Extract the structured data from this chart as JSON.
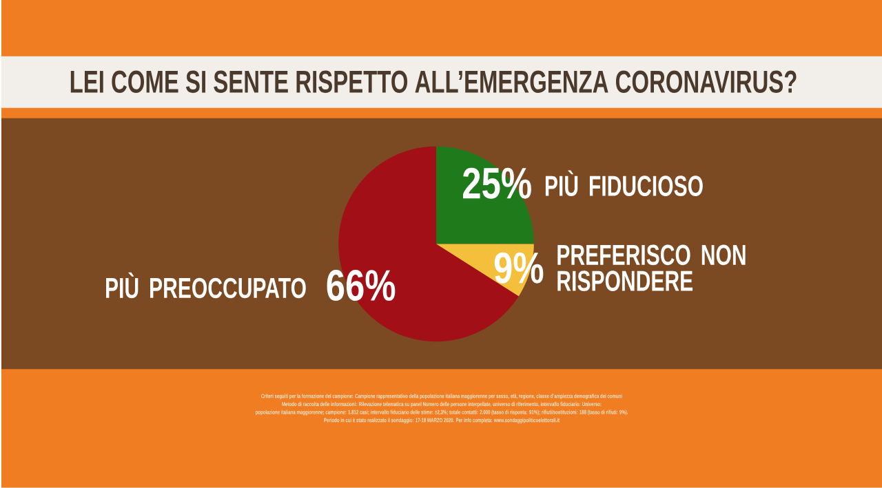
{
  "chart_data": {
    "type": "pie",
    "title": "LEI COME SI SENTE RISPETTO ALL’EMERGENZA CORONAVIRUS?",
    "categories": [
      "PIÙ FIDUCIOSO",
      "PREFERISCO NON RISPONDERE",
      "PIÙ PREOCCUPATO"
    ],
    "values": [
      25,
      9,
      66
    ],
    "value_labels": [
      "25%",
      "9%",
      "66%"
    ],
    "colors": [
      "#1f7a1c",
      "#f4c03c",
      "#a30f16"
    ],
    "annotations": [
      "Criteri seguiti per la formazione del campione: Campione rappresentativo della popolazione italiana maggiorenne per sesso, età, regione, classe d'ampiezza demografica dei comuni",
      "Metodo di raccolta delle informazioni: Rilevazione telematica su panel Numero delle persone interpellate, universo di riferimento, intervallo fiduciario: Universo:",
      "popolazione italiana maggiorenne; campione: 1.812 casi; intervallo fiduciario delle stime: ±2,3%; totale contatti: 2.000 (tasso di risposta: 91%); rifiuti/sostituzioni: 188 (tasso di rifiuti: 9%).",
      "Periodo in cui è stato realizzato il sondaggio: 17-18 MARZO 2020. Per info completa: www.sondaggipoliticoelettorali.it"
    ]
  }
}
